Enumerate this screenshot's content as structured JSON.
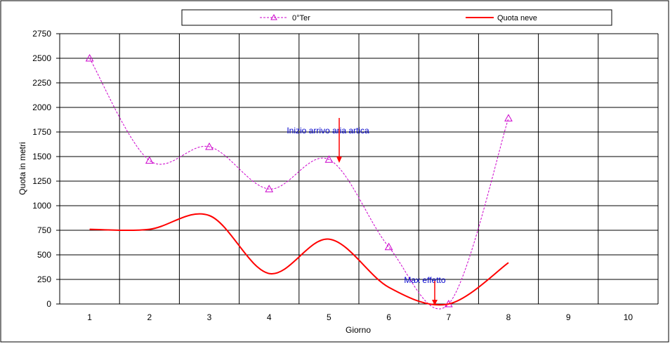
{
  "chart_data": {
    "type": "line",
    "title": "",
    "xlabel": "Giorno",
    "ylabel": "Quota in metri",
    "categories": [
      "1",
      "2",
      "3",
      "4",
      "5",
      "6",
      "7",
      "8",
      "9",
      "10"
    ],
    "ylim": [
      0,
      2750
    ],
    "yticks": [
      0,
      250,
      500,
      750,
      1000,
      1250,
      1500,
      1750,
      2000,
      2250,
      2500,
      2750
    ],
    "grid": true,
    "legend_position": "top",
    "series": [
      {
        "name": "0°Ter",
        "color": "#cc00cc",
        "style": "dashed-triangle-markers",
        "values": [
          2500,
          1460,
          1600,
          1170,
          1470,
          580,
          0,
          1890,
          null,
          null
        ]
      },
      {
        "name": "Quota neve",
        "color": "#ff0000",
        "style": "solid-smooth",
        "values": [
          760,
          760,
          900,
          310,
          660,
          170,
          0,
          420,
          null,
          null
        ]
      }
    ],
    "annotations": [
      {
        "text": "Inizio arrivo aria artica",
        "arrow_color": "#ff0000"
      },
      {
        "text": "Max  effetto",
        "arrow_color": "#ff0000"
      }
    ]
  }
}
